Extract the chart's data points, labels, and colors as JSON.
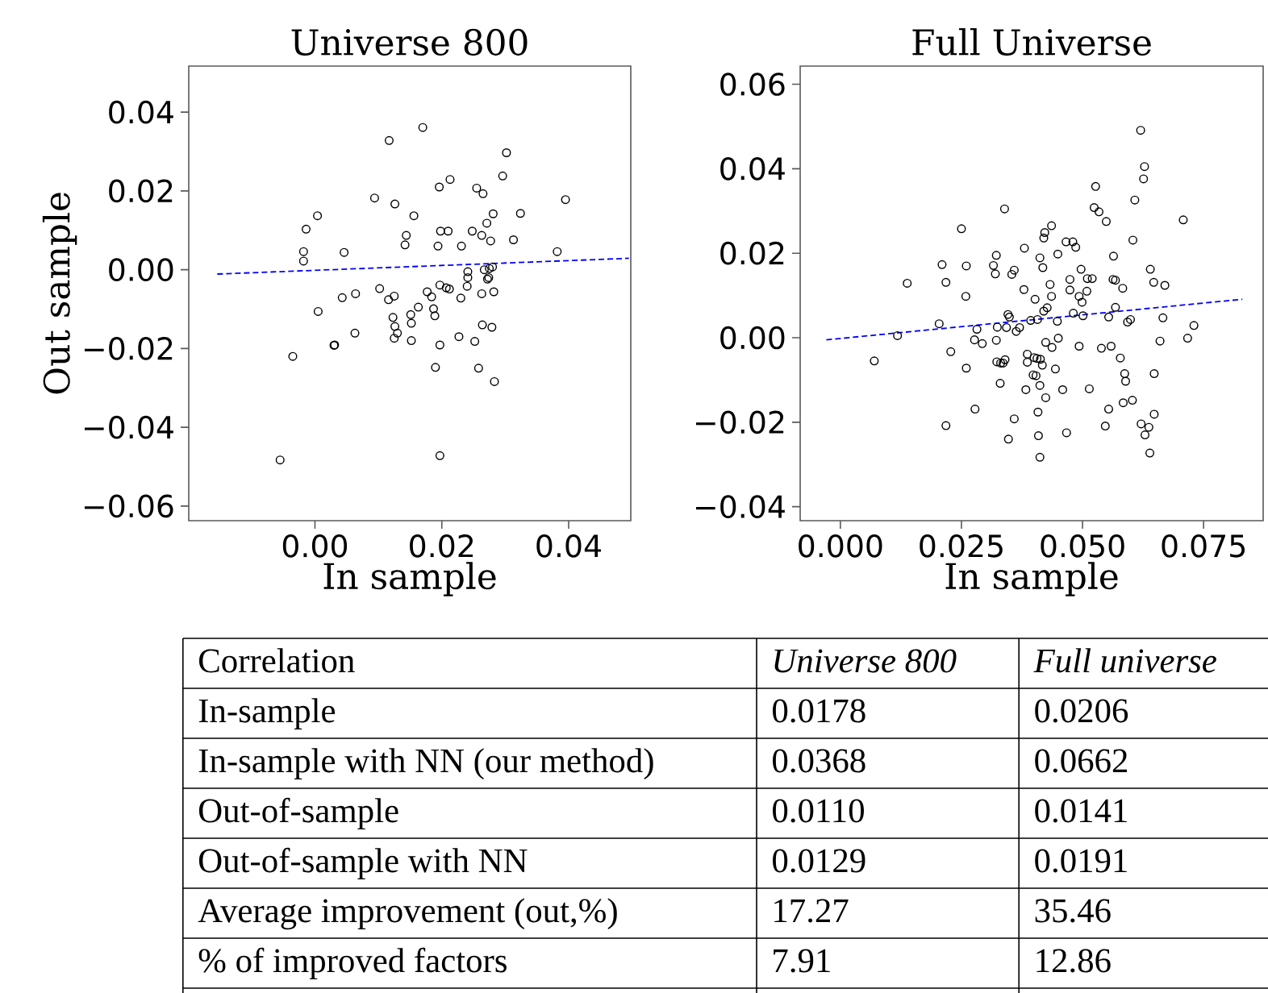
{
  "chart_data": [
    {
      "type": "scatter",
      "title": "Universe 800",
      "xlabel": "In sample",
      "ylabel": "Out sample",
      "marker": "circle",
      "xlim": [
        -0.0199,
        0.0498
      ],
      "ylim": [
        -0.0637,
        0.0517
      ],
      "xticks": [
        {
          "value": 0,
          "label": "0.00"
        },
        {
          "value": 0.02,
          "label": "0.02"
        },
        {
          "value": 0.04,
          "label": "0.04"
        }
      ],
      "yticks": [
        {
          "value": -0.06,
          "label": "−0.06"
        },
        {
          "value": -0.04,
          "label": "−0.04"
        },
        {
          "value": -0.02,
          "label": "−0.02"
        },
        {
          "value": 0,
          "label": "0.00"
        },
        {
          "value": 0.02,
          "label": "0.02"
        },
        {
          "value": 0.04,
          "label": "0.04"
        }
      ],
      "series": [
        {
          "color": "#000000",
          "x": [
            -0.0055,
            -0.0035,
            -0.0018,
            -0.0018,
            -0.0014,
            0.0004,
            0.0005,
            0.003,
            0.0031,
            0.0043,
            0.0046,
            0.0063,
            0.0064,
            0.0094,
            0.0102,
            0.0116,
            0.0117,
            0.0123,
            0.0125,
            0.0125,
            0.0126,
            0.0126,
            0.013,
            0.0142,
            0.0144,
            0.0151,
            0.0152,
            0.0152,
            0.0156,
            0.0163,
            0.017,
            0.0177,
            0.0184,
            0.0187,
            0.0189,
            0.019,
            0.0194,
            0.0196,
            0.0197,
            0.0197,
            0.0197,
            0.0198,
            0.0207,
            0.021,
            0.0212,
            0.0213,
            0.0227,
            0.023,
            0.0231,
            0.024,
            0.0241,
            0.0241,
            0.0248,
            0.0252,
            0.0255,
            0.0258,
            0.0263,
            0.0263,
            0.0264,
            0.0265,
            0.0267,
            0.0271,
            0.0272,
            0.0274,
            0.0275,
            0.0277,
            0.0279,
            0.028,
            0.0281,
            0.0282,
            0.0283,
            0.0296,
            0.0302,
            0.0313,
            0.0324,
            0.0382,
            0.0395
          ],
          "values": [
            -0.0483,
            -0.022,
            0.0046,
            0.0022,
            0.0103,
            0.0137,
            -0.0106,
            -0.0192,
            -0.0191,
            -0.0071,
            0.0044,
            -0.0161,
            -0.0061,
            0.0182,
            -0.0048,
            -0.0076,
            0.0328,
            -0.0121,
            -0.0067,
            -0.0174,
            -0.0144,
            0.0167,
            -0.0161,
            0.0063,
            0.0087,
            -0.0114,
            -0.0136,
            -0.018,
            0.0137,
            -0.0095,
            0.0361,
            -0.0056,
            -0.0069,
            -0.0099,
            -0.0117,
            -0.0248,
            0.006,
            0.021,
            -0.0472,
            -0.0191,
            -0.0039,
            0.0098,
            -0.0046,
            0.0098,
            -0.0049,
            0.0229,
            -0.017,
            -0.0072,
            0.006,
            -0.0042,
            -0.0005,
            -0.002,
            0.0098,
            -0.0182,
            0.0207,
            -0.025,
            0.0087,
            -0.0061,
            -0.014,
            0.0193,
            0.0,
            0.0118,
            -0.0024,
            -0.002,
            0.0003,
            0.0073,
            -0.0146,
            0.0007,
            0.0142,
            -0.0056,
            -0.0284,
            0.0238,
            0.0297,
            0.0076,
            0.0143,
            0.0046,
            0.0178
          ]
        },
        {
          "type": "line",
          "color": "#0000ff",
          "marker": "none",
          "line_style": "dashed",
          "x": [
            -0.0154,
            0.0495
          ],
          "values": [
            -0.0011,
            0.0029
          ]
        }
      ]
    },
    {
      "type": "scatter",
      "title": "Full Universe",
      "xlabel": "In sample",
      "marker": "circle",
      "xlim": [
        -0.0083,
        0.0873
      ],
      "ylim": [
        -0.0433,
        0.0643
      ],
      "xticks": [
        {
          "value": 0,
          "label": "0.000"
        },
        {
          "value": 0.025,
          "label": "0.025"
        },
        {
          "value": 0.05,
          "label": "0.050"
        },
        {
          "value": 0.075,
          "label": "0.075"
        }
      ],
      "yticks": [
        {
          "value": -0.04,
          "label": "−0.04"
        },
        {
          "value": -0.02,
          "label": "−0.02"
        },
        {
          "value": 0,
          "label": "0.00"
        },
        {
          "value": 0.02,
          "label": "0.02"
        },
        {
          "value": 0.04,
          "label": "0.04"
        },
        {
          "value": 0.06,
          "label": "0.06"
        }
      ],
      "series": [
        {
          "color": "#000000",
          "x": [
            0.007,
            0.0118,
            0.0138,
            0.0204,
            0.021,
            0.0218,
            0.0218,
            0.0228,
            0.025,
            0.0259,
            0.026,
            0.026,
            0.0277,
            0.0278,
            0.0282,
            0.0293,
            0.0316,
            0.032,
            0.0322,
            0.0322,
            0.0323,
            0.0324,
            0.033,
            0.0331,
            0.0336,
            0.0339,
            0.034,
            0.0343,
            0.0346,
            0.0347,
            0.0349,
            0.0354,
            0.0359,
            0.0359,
            0.0363,
            0.037,
            0.0379,
            0.038,
            0.0383,
            0.0386,
            0.0386,
            0.0393,
            0.0398,
            0.04,
            0.0402,
            0.0404,
            0.0406,
            0.0407,
            0.0408,
            0.0409,
            0.0412,
            0.0412,
            0.0412,
            0.0413,
            0.0417,
            0.0418,
            0.042,
            0.042,
            0.0422,
            0.0424,
            0.0424,
            0.0427,
            0.0433,
            0.0436,
            0.0436,
            0.0437,
            0.0444,
            0.0448,
            0.0449,
            0.045,
            0.0459,
            0.0466,
            0.0467,
            0.0474,
            0.0474,
            0.048,
            0.0481,
            0.0486,
            0.0493,
            0.0493,
            0.0497,
            0.0499,
            0.0501,
            0.0509,
            0.051,
            0.0514,
            0.052,
            0.0527,
            0.0524,
            0.0534,
            0.0539,
            0.0547,
            0.0549,
            0.0554,
            0.0554,
            0.0559,
            0.0563,
            0.0564,
            0.0568,
            0.0568,
            0.0578,
            0.0583,
            0.0584,
            0.0587,
            0.0589,
            0.0593,
            0.0599,
            0.0603,
            0.0604,
            0.0608,
            0.062,
            0.0621,
            0.0626,
            0.0628,
            0.0629,
            0.0637,
            0.0639,
            0.064,
            0.0647,
            0.0648,
            0.0648,
            0.066,
            0.0666,
            0.067,
            0.0708,
            0.0717,
            0.073
          ],
          "values": [
            -0.0055,
            0.0005,
            0.0129,
            0.0033,
            0.0173,
            0.0131,
            -0.0208,
            -0.0033,
            0.0258,
            0.0098,
            0.017,
            -0.0072,
            -0.0005,
            -0.0169,
            0.002,
            -0.0014,
            0.0171,
            0.0151,
            0.0195,
            -0.0006,
            -0.0057,
            0.0025,
            -0.0108,
            -0.006,
            -0.006,
            0.0305,
            -0.0052,
            0.0024,
            0.0055,
            -0.024,
            0.0049,
            0.015,
            0.016,
            -0.0192,
            0.0015,
            0.0024,
            0.0114,
            0.0212,
            -0.0123,
            -0.0039,
            -0.0058,
            0.0041,
            -0.0088,
            -0.0047,
            0.0091,
            -0.009,
            -0.0049,
            0.0043,
            -0.0176,
            -0.0232,
            -0.0283,
            0.0189,
            -0.0113,
            -0.0051,
            -0.0065,
            0.0166,
            0.0236,
            0.0063,
            0.0249,
            -0.0142,
            -0.0011,
            0.0071,
            0.0126,
            0.0098,
            0.0265,
            -0.0023,
            -0.0074,
            0.0039,
            0.0198,
            -0.0001,
            -0.0123,
            0.0227,
            -0.0225,
            0.0138,
            0.0113,
            0.0227,
            0.0058,
            0.0214,
            -0.002,
            0.0098,
            0.0162,
            0.0084,
            0.0052,
            0.011,
            0.014,
            -0.0121,
            0.014,
            0.0358,
            0.0308,
            0.0298,
            -0.0025,
            -0.0209,
            0.0275,
            0.0049,
            -0.0169,
            -0.002,
            0.0138,
            0.0193,
            0.0136,
            0.0072,
            -0.0048,
            0.0117,
            -0.0154,
            -0.0085,
            -0.0103,
            0.0037,
            0.0043,
            -0.0148,
            0.0231,
            0.0326,
            0.0491,
            -0.0204,
            0.0376,
            0.0405,
            -0.023,
            -0.0212,
            -0.0273,
            0.0162,
            0.0131,
            -0.0181,
            -0.0085,
            -0.0008,
            0.0047,
            0.0124,
            0.0279,
            -0.0001,
            0.0029
          ]
        },
        {
          "type": "line",
          "color": "#0000ff",
          "marker": "none",
          "line_style": "dashed",
          "x": [
            -0.0029,
            0.083
          ],
          "values": [
            -0.0005,
            0.0091
          ]
        }
      ]
    },
    {
      "type": "other",
      "title": "Correlation",
      "categories": [
        "In-sample",
        "In-sample with NN (our method)",
        "Out-of-sample",
        "Out-of-sample with NN",
        "Average improvement (out,%)",
        "% of improved factors"
      ],
      "series": [
        {
          "name": "Universe 800",
          "values": [
            0.0178,
            0.0368,
            0.011,
            0.0129,
            17.27,
            7.91
          ],
          "value_labels": [
            "0.0178",
            "0.0368",
            "0.0110",
            "0.0129",
            "17.27",
            "7.91"
          ]
        },
        {
          "name": "Full universe",
          "values": [
            0.0206,
            0.0662,
            0.0141,
            0.0191,
            35.46,
            12.86
          ],
          "value_labels": [
            "0.0206",
            "0.0662",
            "0.0141",
            "0.0191",
            "35.46",
            "12.86"
          ]
        }
      ]
    }
  ]
}
